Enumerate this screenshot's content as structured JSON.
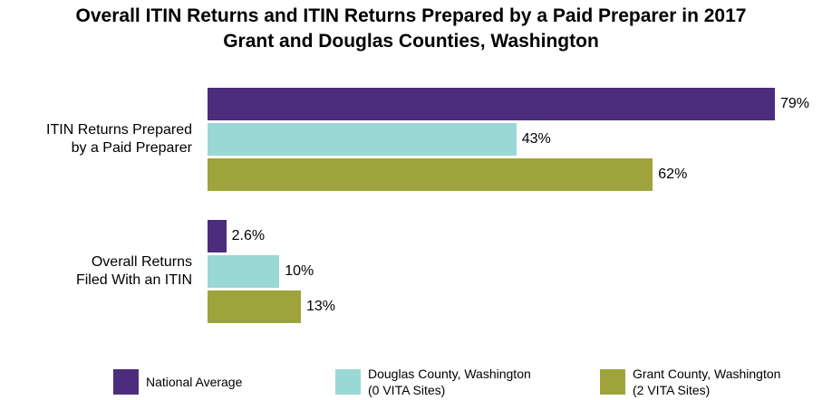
{
  "chart_data": {
    "type": "bar",
    "orientation": "horizontal",
    "title": "Overall ITIN Returns and ITIN Returns Prepared by a Paid Preparer in 2017",
    "subtitle": "Grant and Douglas Counties, Washington",
    "categories": [
      "ITIN Returns Prepared\nby a Paid Preparer",
      "Overall Returns\nFiled With an ITIN"
    ],
    "series": [
      {
        "name": "National Average",
        "color": "#4b2c7d",
        "values": [
          79,
          2.6
        ],
        "value_labels": [
          "79%",
          "2.6%"
        ]
      },
      {
        "name": "Douglas County, Washington\n(0 VITA Sites)",
        "color": "#9ad8d6",
        "values": [
          43,
          10
        ],
        "value_labels": [
          "43%",
          "10%"
        ]
      },
      {
        "name": "Grant County, Washington\n(2 VITA Sites)",
        "color": "#9ea33b",
        "values": [
          62,
          13
        ],
        "value_labels": [
          "62%",
          "13%"
        ]
      }
    ],
    "legend": "bottom"
  }
}
